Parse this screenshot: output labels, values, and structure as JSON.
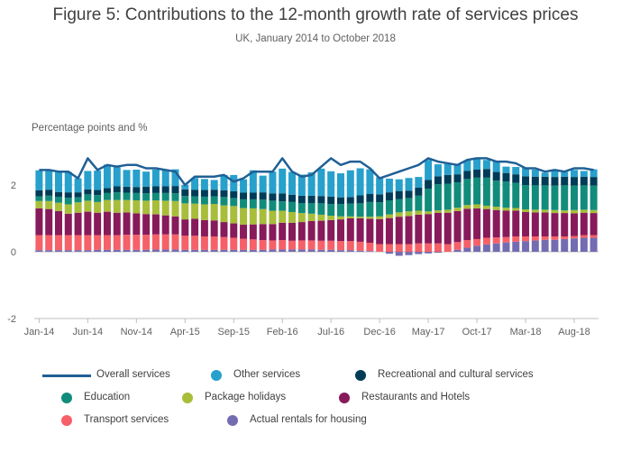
{
  "title": "Figure 5: Contributions to the 12-month growth rate of services prices",
  "subtitle": "UK, January 2014 to October 2018",
  "ylabel": "Percentage points and %",
  "colors": {
    "overall": "#206095",
    "other": "#27a0cc",
    "recreational": "#003c57",
    "education": "#118c7b",
    "package": "#a8bd3a",
    "restaurants": "#871a5b",
    "transport": "#f66068",
    "rentals": "#746cb1",
    "grid": "#d9d9d9",
    "axis": "#bebebe"
  },
  "legend": [
    {
      "key": "overall",
      "label": "Overall services",
      "kind": "line"
    },
    {
      "key": "other",
      "label": "Other services",
      "kind": "dot"
    },
    {
      "key": "recreational",
      "label": "Recreational and cultural services",
      "kind": "dot"
    },
    {
      "key": "education",
      "label": "Education",
      "kind": "dot"
    },
    {
      "key": "package",
      "label": "Package holidays",
      "kind": "dot"
    },
    {
      "key": "restaurants",
      "label": "Restaurants and Hotels",
      "kind": "dot"
    },
    {
      "key": "transport",
      "label": "Transport services",
      "kind": "dot"
    },
    {
      "key": "rentals",
      "label": "Actual rentals for housing",
      "kind": "dot"
    }
  ],
  "chart_data": {
    "type": "bar",
    "stacked": true,
    "title": "Figure 5: Contributions to the 12-month growth rate of services prices",
    "subtitle": "UK, January 2014 to October 2018",
    "ylabel": "Percentage points and %",
    "ylim": [
      -2,
      3.5
    ],
    "yticks": [
      -2,
      0,
      2
    ],
    "xticks": [
      "Jan-14",
      "Jun-14",
      "Nov-14",
      "Apr-15",
      "Sep-15",
      "Feb-16",
      "Jul-16",
      "Dec-16",
      "May-17",
      "Oct-17",
      "Mar-18",
      "Aug-18"
    ],
    "xtick_index": [
      0,
      5,
      10,
      15,
      20,
      25,
      30,
      35,
      40,
      45,
      50,
      55
    ],
    "grid": true,
    "legend_position": "bottom",
    "categories": [
      "Jan-14",
      "Feb-14",
      "Mar-14",
      "Apr-14",
      "May-14",
      "Jun-14",
      "Jul-14",
      "Aug-14",
      "Sep-14",
      "Oct-14",
      "Nov-14",
      "Dec-14",
      "Jan-15",
      "Feb-15",
      "Mar-15",
      "Apr-15",
      "May-15",
      "Jun-15",
      "Jul-15",
      "Aug-15",
      "Sep-15",
      "Oct-15",
      "Nov-15",
      "Dec-15",
      "Jan-16",
      "Feb-16",
      "Mar-16",
      "Apr-16",
      "May-16",
      "Jun-16",
      "Jul-16",
      "Aug-16",
      "Sep-16",
      "Oct-16",
      "Nov-16",
      "Dec-16",
      "Jan-17",
      "Feb-17",
      "Mar-17",
      "Apr-17",
      "May-17",
      "Jun-17",
      "Jul-17",
      "Aug-17",
      "Sep-17",
      "Oct-17",
      "Nov-17",
      "Dec-17",
      "Jan-18",
      "Feb-18",
      "Mar-18",
      "Apr-18",
      "May-18",
      "Jun-18",
      "Jul-18",
      "Aug-18",
      "Sep-18",
      "Oct-18"
    ],
    "series": [
      {
        "name": "Actual rentals for housing",
        "key": "rentals",
        "values": [
          0.05,
          0.05,
          0.05,
          0.05,
          0.05,
          0.05,
          0.06,
          0.06,
          0.06,
          0.06,
          0.06,
          0.06,
          0.07,
          0.07,
          0.07,
          0.06,
          0.06,
          0.06,
          0.06,
          0.06,
          0.06,
          0.06,
          0.06,
          0.06,
          0.07,
          0.07,
          0.07,
          0.07,
          0.07,
          0.06,
          0.06,
          0.05,
          0.05,
          0.03,
          0.02,
          0.0,
          -0.06,
          -0.12,
          -0.1,
          -0.07,
          -0.05,
          -0.03,
          0.0,
          0.06,
          0.12,
          0.18,
          0.22,
          0.25,
          0.28,
          0.3,
          0.32,
          0.34,
          0.36,
          0.36,
          0.38,
          0.4,
          0.42,
          0.42
        ]
      },
      {
        "name": "Transport services",
        "key": "transport",
        "values": [
          0.45,
          0.45,
          0.45,
          0.45,
          0.45,
          0.45,
          0.44,
          0.44,
          0.44,
          0.45,
          0.45,
          0.45,
          0.45,
          0.45,
          0.45,
          0.42,
          0.42,
          0.4,
          0.4,
          0.38,
          0.36,
          0.33,
          0.31,
          0.29,
          0.27,
          0.28,
          0.26,
          0.27,
          0.27,
          0.27,
          0.27,
          0.27,
          0.27,
          0.27,
          0.25,
          0.23,
          0.23,
          0.23,
          0.23,
          0.25,
          0.25,
          0.25,
          0.23,
          0.23,
          0.23,
          0.2,
          0.2,
          0.18,
          0.16,
          0.16,
          0.14,
          0.12,
          0.1,
          0.1,
          0.08,
          0.07,
          0.08,
          0.08
        ]
      },
      {
        "name": "Restaurants and Hotels",
        "key": "restaurants",
        "values": [
          0.8,
          0.78,
          0.72,
          0.64,
          0.67,
          0.7,
          0.67,
          0.7,
          0.67,
          0.67,
          0.64,
          0.62,
          0.6,
          0.57,
          0.54,
          0.49,
          0.51,
          0.49,
          0.48,
          0.45,
          0.43,
          0.42,
          0.45,
          0.48,
          0.49,
          0.52,
          0.54,
          0.55,
          0.58,
          0.6,
          0.62,
          0.65,
          0.68,
          0.7,
          0.72,
          0.75,
          0.78,
          0.82,
          0.84,
          0.86,
          0.88,
          0.92,
          0.94,
          0.93,
          0.94,
          0.92,
          0.86,
          0.82,
          0.79,
          0.77,
          0.73,
          0.72,
          0.72,
          0.7,
          0.7,
          0.68,
          0.67,
          0.66
        ]
      },
      {
        "name": "Package holidays",
        "key": "package",
        "values": [
          0.22,
          0.24,
          0.25,
          0.28,
          0.31,
          0.33,
          0.32,
          0.35,
          0.38,
          0.37,
          0.39,
          0.4,
          0.42,
          0.44,
          0.46,
          0.48,
          0.45,
          0.47,
          0.49,
          0.5,
          0.52,
          0.5,
          0.48,
          0.45,
          0.4,
          0.36,
          0.32,
          0.27,
          0.22,
          0.18,
          0.13,
          0.09,
          0.06,
          0.05,
          0.06,
          0.08,
          0.11,
          0.13,
          0.14,
          0.12,
          0.08,
          0.07,
          0.09,
          0.1,
          0.11,
          0.12,
          0.1,
          0.1,
          0.09,
          0.08,
          0.08,
          0.08,
          0.08,
          0.09,
          0.08,
          0.1,
          0.09,
          0.09
        ]
      },
      {
        "name": "Education",
        "key": "education",
        "values": [
          0.14,
          0.16,
          0.17,
          0.2,
          0.15,
          0.19,
          0.21,
          0.21,
          0.23,
          0.22,
          0.22,
          0.22,
          0.22,
          0.23,
          0.23,
          0.22,
          0.22,
          0.23,
          0.23,
          0.25,
          0.24,
          0.26,
          0.27,
          0.28,
          0.3,
          0.28,
          0.3,
          0.3,
          0.32,
          0.34,
          0.35,
          0.37,
          0.38,
          0.4,
          0.44,
          0.42,
          0.42,
          0.4,
          0.4,
          0.45,
          0.68,
          0.78,
          0.78,
          0.76,
          0.78,
          0.8,
          0.84,
          0.78,
          0.78,
          0.75,
          0.73,
          0.73,
          0.73,
          0.73,
          0.75,
          0.73,
          0.73,
          0.73
        ]
      },
      {
        "name": "Recreational and cultural services",
        "key": "recreational",
        "values": [
          0.18,
          0.18,
          0.15,
          0.16,
          0.15,
          0.15,
          0.15,
          0.15,
          0.18,
          0.18,
          0.18,
          0.2,
          0.2,
          0.2,
          0.22,
          0.2,
          0.2,
          0.2,
          0.2,
          0.2,
          0.2,
          0.2,
          0.2,
          0.22,
          0.22,
          0.24,
          0.22,
          0.22,
          0.22,
          0.22,
          0.22,
          0.2,
          0.2,
          0.24,
          0.24,
          0.24,
          0.24,
          0.24,
          0.22,
          0.24,
          0.26,
          0.24,
          0.26,
          0.24,
          0.24,
          0.24,
          0.26,
          0.26,
          0.26,
          0.26,
          0.26,
          0.26,
          0.26,
          0.26,
          0.26,
          0.26,
          0.26,
          0.26
        ]
      },
      {
        "name": "Other services",
        "key": "other",
        "values": [
          0.6,
          0.58,
          0.6,
          0.61,
          0.42,
          0.55,
          0.58,
          0.7,
          0.57,
          0.5,
          0.52,
          0.45,
          0.5,
          0.5,
          0.5,
          0.13,
          0.35,
          0.33,
          0.29,
          0.46,
          0.49,
          0.4,
          0.67,
          0.5,
          0.65,
          0.74,
          0.68,
          0.63,
          0.7,
          0.82,
          0.76,
          0.72,
          0.8,
          0.81,
          0.74,
          0.51,
          0.41,
          0.35,
          0.38,
          0.32,
          0.6,
          0.36,
          0.33,
          0.29,
          0.31,
          0.34,
          0.27,
          0.31,
          0.19,
          0.22,
          0.25,
          0.21,
          0.12,
          0.18,
          0.14,
          0.21,
          0.17,
          0.23
        ]
      }
    ],
    "overall": [
      2.45,
      2.45,
      2.4,
      2.4,
      2.2,
      2.8,
      2.45,
      2.6,
      2.55,
      2.6,
      2.6,
      2.5,
      2.5,
      2.45,
      2.4,
      2.0,
      2.25,
      2.25,
      2.25,
      2.3,
      2.1,
      2.2,
      2.4,
      2.4,
      2.4,
      2.8,
      2.4,
      2.25,
      2.3,
      2.55,
      2.8,
      2.6,
      2.7,
      2.7,
      2.5,
      2.2,
      2.3,
      2.4,
      2.5,
      2.6,
      2.8,
      2.7,
      2.65,
      2.6,
      2.75,
      2.8,
      2.8,
      2.7,
      2.7,
      2.65,
      2.5,
      2.5,
      2.4,
      2.45,
      2.4,
      2.5,
      2.5,
      2.45
    ]
  }
}
